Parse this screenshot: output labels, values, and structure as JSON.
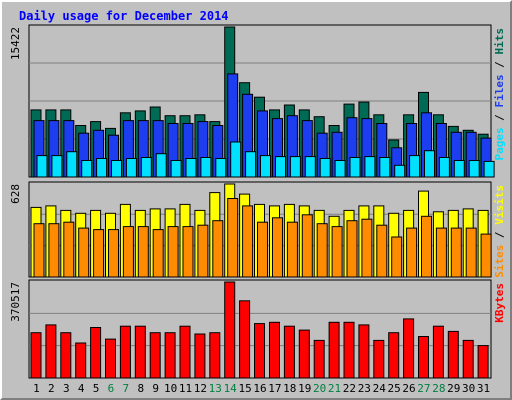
{
  "chart_data": [
    {
      "type": "bar",
      "title": "Daily usage for December 2014",
      "categories": [
        "1",
        "2",
        "3",
        "4",
        "5",
        "6",
        "7",
        "8",
        "9",
        "10",
        "11",
        "12",
        "13",
        "14",
        "15",
        "16",
        "17",
        "18",
        "19",
        "20",
        "21",
        "22",
        "23",
        "24",
        "25",
        "26",
        "27",
        "28",
        "29",
        "30",
        "31"
      ],
      "weekend_days": [
        "6",
        "7",
        "13",
        "14",
        "20",
        "21",
        "27",
        "28"
      ],
      "ymax_label": "15422",
      "ylim": [
        0,
        15422
      ],
      "series": [
        {
          "name": "Hits",
          "color": "#006b54",
          "values": [
            6900,
            6900,
            6900,
            5300,
            5700,
            5000,
            6600,
            6800,
            7200,
            6300,
            6300,
            6400,
            5700,
            15422,
            9700,
            8200,
            6900,
            7400,
            6900,
            6200,
            5300,
            7500,
            7700,
            6400,
            3800,
            6400,
            8700,
            6400,
            5200,
            4800,
            4400
          ]
        },
        {
          "name": "Files",
          "color": "#1c3ef0",
          "values": [
            5800,
            5800,
            5800,
            4500,
            4800,
            4300,
            5800,
            5800,
            5800,
            5500,
            5500,
            5700,
            5300,
            10600,
            8500,
            6800,
            6000,
            6300,
            5800,
            4500,
            4600,
            6100,
            6000,
            5500,
            3000,
            5500,
            6600,
            5500,
            4600,
            4600,
            4000
          ]
        },
        {
          "name": "Pages",
          "color": "#00e0ff",
          "values": [
            2200,
            2200,
            2600,
            1700,
            1900,
            1700,
            1900,
            2000,
            2400,
            1700,
            1900,
            2000,
            1900,
            3600,
            2600,
            2200,
            2100,
            2100,
            2100,
            1900,
            1700,
            2000,
            2100,
            2000,
            1200,
            2200,
            2700,
            2000,
            1700,
            1700,
            1600
          ]
        }
      ],
      "axis_label": [
        "Pages",
        "Files",
        "Hits"
      ]
    },
    {
      "type": "bar",
      "ymax_label": "628",
      "ylim": [
        0,
        628
      ],
      "series": [
        {
          "name": "Visits",
          "color": "#ffff00",
          "values": [
            470,
            480,
            450,
            430,
            450,
            430,
            490,
            450,
            460,
            460,
            490,
            450,
            570,
            628,
            560,
            490,
            480,
            490,
            480,
            450,
            410,
            450,
            480,
            480,
            430,
            450,
            580,
            440,
            450,
            460,
            450
          ]
        },
        {
          "name": "Sites",
          "color": "#ff8c00",
          "values": [
            360,
            360,
            370,
            330,
            320,
            320,
            340,
            340,
            320,
            340,
            340,
            350,
            380,
            530,
            480,
            370,
            400,
            370,
            420,
            360,
            340,
            380,
            390,
            350,
            270,
            330,
            410,
            330,
            330,
            330,
            290
          ]
        }
      ],
      "axis_label": [
        "Sites",
        "Visits"
      ]
    },
    {
      "type": "bar",
      "ymax_label": "370517",
      "ylim": [
        0,
        370517
      ],
      "series": [
        {
          "name": "KBytes",
          "color": "#ff0000",
          "values": [
            175000,
            205000,
            175000,
            135000,
            195000,
            150000,
            200000,
            200000,
            175000,
            175000,
            200000,
            170000,
            175000,
            370517,
            298000,
            210000,
            215000,
            200000,
            185000,
            145000,
            215000,
            215000,
            205000,
            145000,
            175000,
            228000,
            160000,
            200000,
            180000,
            145000,
            125000
          ]
        }
      ],
      "axis_label": [
        "KBytes"
      ]
    }
  ]
}
